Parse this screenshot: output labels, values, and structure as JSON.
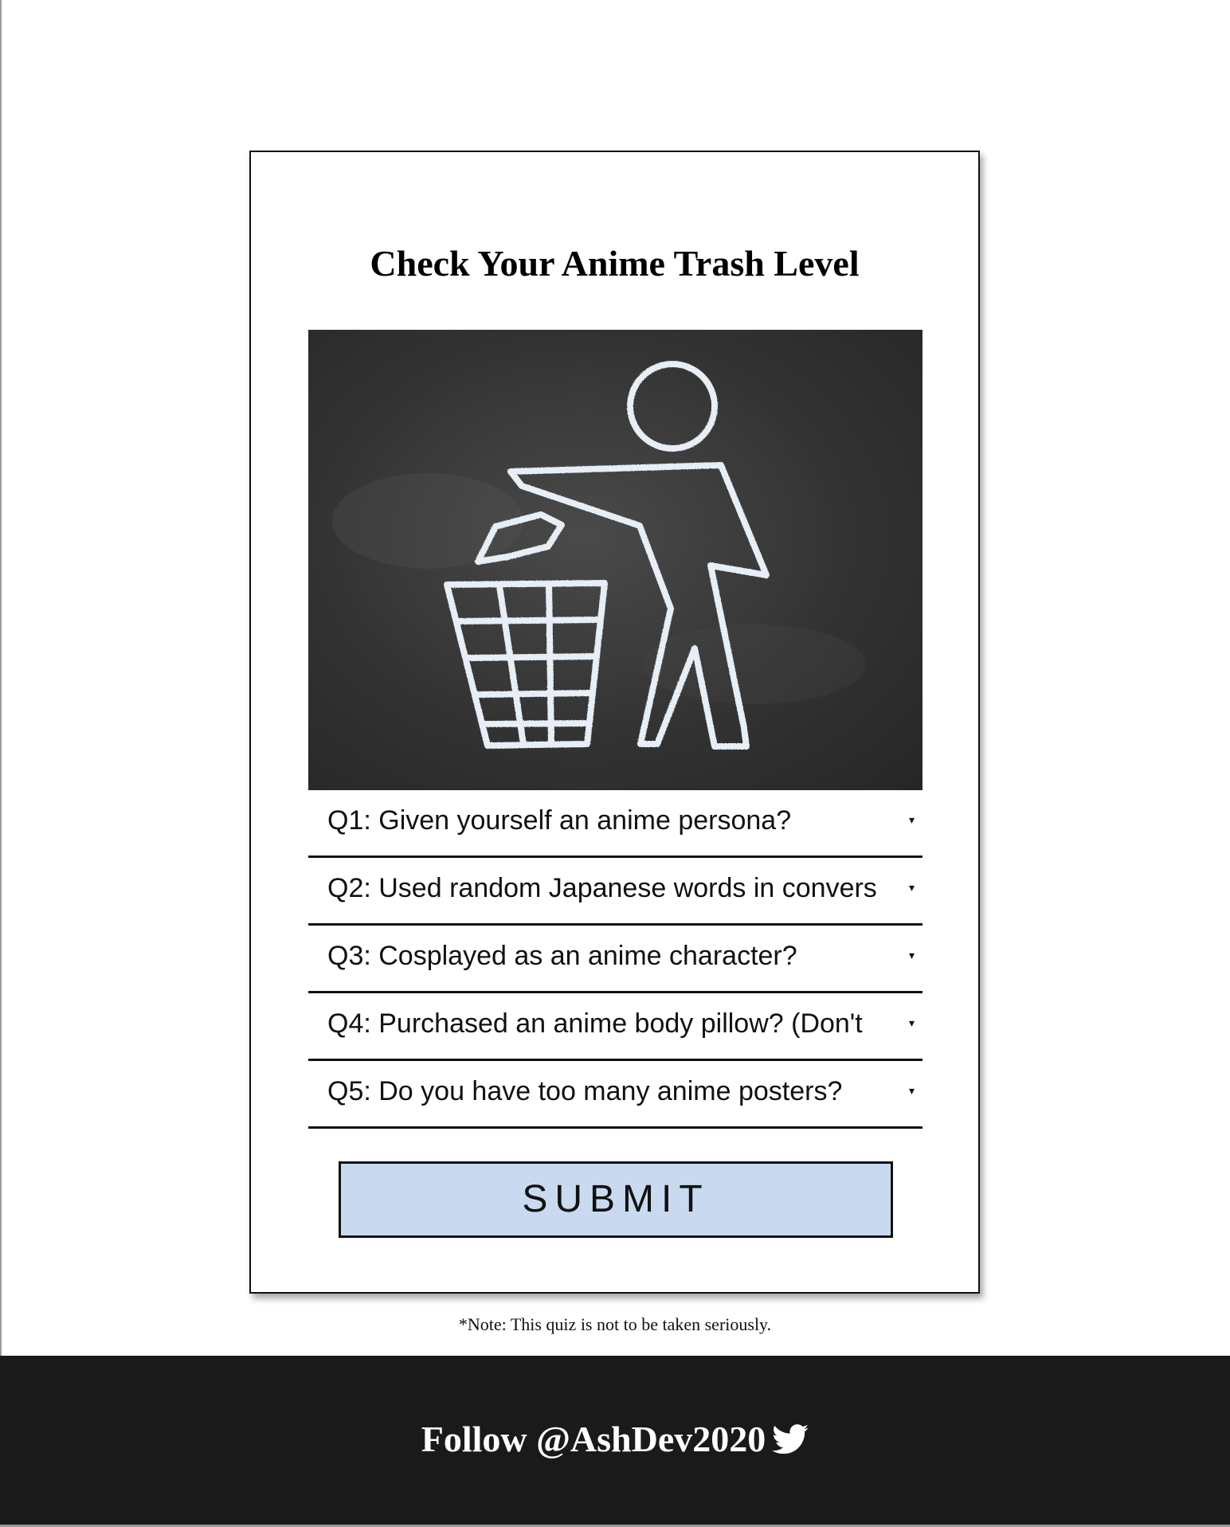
{
  "quiz": {
    "title": "Check Your Anime Trash Level",
    "image": {
      "icon": "trash-bin-person-icon"
    },
    "questions": [
      {
        "label": "Q1: Given yourself an anime persona?"
      },
      {
        "label": "Q2: Used random Japanese words in convers"
      },
      {
        "label": "Q3: Cosplayed as an anime character?"
      },
      {
        "label": "Q4: Purchased an anime body pillow? (Don't"
      },
      {
        "label": "Q5: Do you have too many anime posters?"
      }
    ],
    "dropdown_icon": "▾",
    "submit_label": "SUBMIT"
  },
  "note": "*Note: This quiz is not to be taken seriously.",
  "footer": {
    "follow_text": "Follow @AshDev2020",
    "icon": "twitter-bird-icon",
    "background": "#1a1a1a"
  },
  "colors": {
    "submit_bg": "#c9daf0",
    "text": "#111111"
  }
}
